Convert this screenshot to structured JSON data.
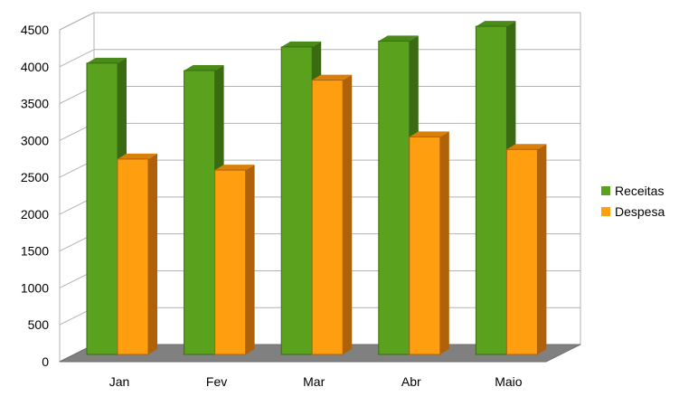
{
  "chart_data": {
    "type": "bar",
    "categories": [
      "Jan",
      "Fev",
      "Mar",
      "Abr",
      "Maio"
    ],
    "series": [
      {
        "name": "Receitas",
        "values": [
          3950,
          3850,
          4170,
          4250,
          4450
        ],
        "color": "#5aa21e",
        "side_color": "#3a6b12",
        "top_color": "#4a8a18"
      },
      {
        "name": "Despesa",
        "values": [
          2650,
          2500,
          3720,
          2950,
          2780
        ],
        "color": "#ff9e0f",
        "side_color": "#b0620a",
        "top_color": "#d9800c"
      }
    ],
    "title": "",
    "xlabel": "",
    "ylabel": "",
    "ylim": [
      0,
      4500
    ],
    "yticks": [
      0,
      500,
      1000,
      1500,
      2000,
      2500,
      3000,
      3500,
      4000,
      4500
    ],
    "grid": true,
    "legend_position": "right"
  }
}
